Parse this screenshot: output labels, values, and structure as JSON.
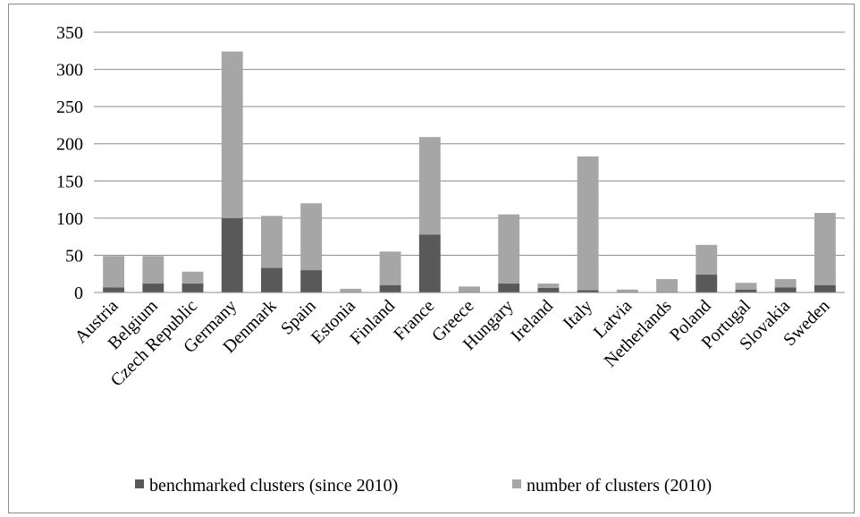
{
  "chart_data": {
    "type": "bar",
    "stacked": true,
    "title": "",
    "xlabel": "",
    "ylabel": "",
    "ylim": [
      0,
      350
    ],
    "yticks": [
      0,
      50,
      100,
      150,
      200,
      250,
      300,
      350
    ],
    "grid": true,
    "legend_position": "bottom",
    "categories": [
      "Austria",
      "Belgium",
      "Czech Republic",
      "Germany",
      "Denmark",
      "Spain",
      "Estonia",
      "Finland",
      "France",
      "Greece",
      "Hungary",
      "Ireland",
      "Italy",
      "Latvia",
      "Netherlands",
      "Poland",
      "Portugal",
      "Slovakia",
      "Sweden"
    ],
    "series": [
      {
        "name": "benchmarked clusters (since 2010)",
        "color": "#595959",
        "values": [
          7,
          12,
          12,
          100,
          33,
          30,
          0,
          10,
          78,
          0,
          12,
          6,
          3,
          0,
          0,
          24,
          4,
          7,
          10
        ]
      },
      {
        "name": "number of clusters (2010)",
        "color": "#a6a6a6",
        "values": [
          42,
          37,
          16,
          224,
          70,
          90,
          5,
          45,
          131,
          8,
          93,
          6,
          180,
          4,
          18,
          40,
          9,
          11,
          97
        ]
      }
    ]
  }
}
